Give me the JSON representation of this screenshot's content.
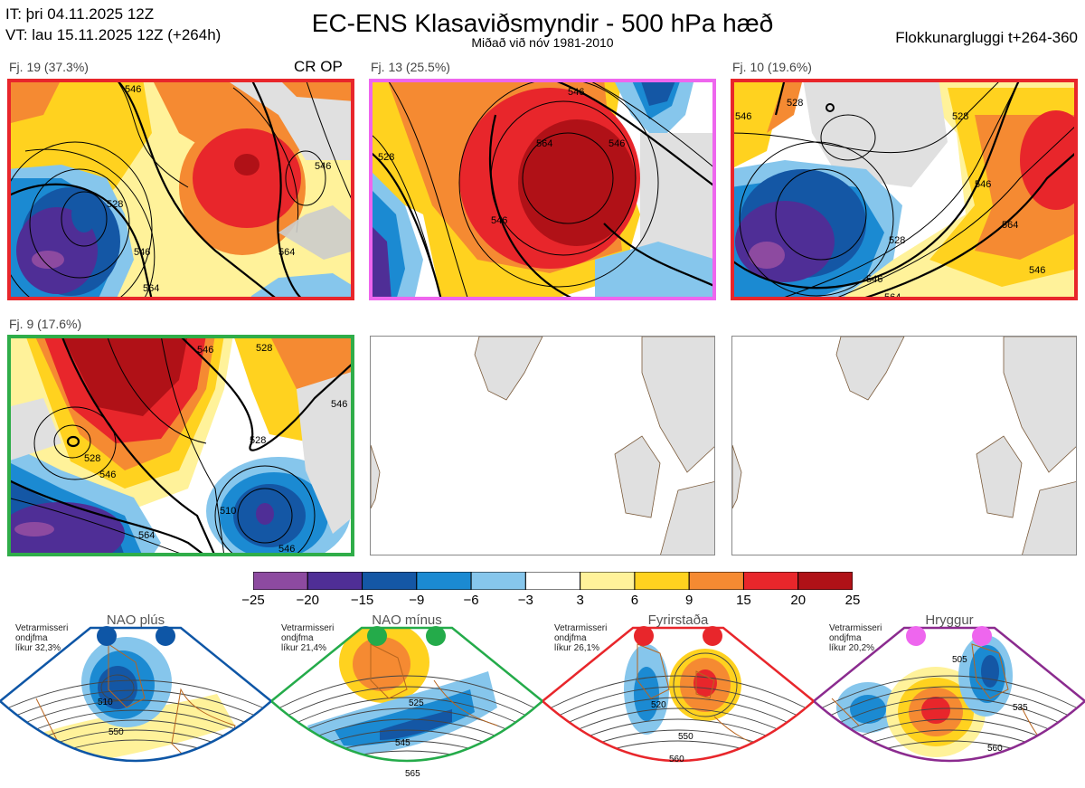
{
  "header": {
    "it_line": "IT: þri 04.11.2025 12Z",
    "vt_line": "VT: lau 15.11.2025 12Z  (+264h)",
    "title": "EC-ENS Klasaviðsmyndir - 500 hPa hæð",
    "subtitle": "Miðað við nóv 1981-2010",
    "window": "Flokkunargluggi t+264-360"
  },
  "panels": [
    {
      "label": "Fj. 19 (37.3%)",
      "border": "#e8262b",
      "tag": "CR OP",
      "contours": [
        "528",
        "546",
        "564",
        "546",
        "546",
        "564"
      ]
    },
    {
      "label": "Fj. 13 (25.5%)",
      "border": "#ee66ee",
      "contours": [
        "528",
        "564",
        "546",
        "546",
        "546"
      ]
    },
    {
      "label": "Fj. 10 (19.6%)",
      "border": "#e8262b",
      "contours": [
        "528",
        "528",
        "546",
        "528",
        "546",
        "564",
        "546",
        "564",
        "546"
      ]
    },
    {
      "label": "Fj. 9 (17.6%)",
      "border": "#2fad49",
      "contours": [
        "546",
        "528",
        "528",
        "546",
        "528",
        "546",
        "510",
        "564",
        "546"
      ]
    }
  ],
  "chart_data": {
    "type": "heatmap",
    "title": "EC-ENS Klasaviðsmyndir - 500 hPa hæð",
    "colorbar": {
      "ticks": [
        "−25",
        "−20",
        "−15",
        "−9",
        "−6",
        "−3",
        "3",
        "6",
        "9",
        "15",
        "20",
        "25"
      ],
      "bounds": [
        -25,
        -20,
        -15,
        -9,
        -6,
        -3,
        3,
        6,
        9,
        15,
        20,
        25
      ],
      "colors": [
        "#8d4aa0",
        "#4f2e96",
        "#1457a5",
        "#1b8ad2",
        "#86c6ec",
        "#ffffff",
        "#fff29a",
        "#ffd21f",
        "#f58a32",
        "#e8262b",
        "#b01117"
      ]
    },
    "clusters": [
      {
        "label": "Fj. 19",
        "percent": 37.3
      },
      {
        "label": "Fj. 13",
        "percent": 25.5
      },
      {
        "label": "Fj. 10",
        "percent": 19.6
      },
      {
        "label": "Fj. 9",
        "percent": 17.6
      }
    ]
  },
  "regimes": [
    {
      "name": "NAO plús",
      "stat1": "Vetrarmisseri",
      "stat2": "ondjfma",
      "stat3": "líkur 32,3%",
      "color": "#0e56a6",
      "contours": [
        "510",
        "550"
      ]
    },
    {
      "name": "NAO mínus",
      "stat1": "Vetrarmisseri",
      "stat2": "ondjfma",
      "stat3": "líkur 21,4%",
      "color": "#24ab4a",
      "contours": [
        "525",
        "545",
        "565"
      ]
    },
    {
      "name": "Fyrirstaða",
      "stat1": "Vetrarmisseri",
      "stat2": "ondjfma",
      "stat3": "líkur 26,1%",
      "color": "#e8262b",
      "contours": [
        "520",
        "550",
        "560"
      ]
    },
    {
      "name": "Hryggur",
      "stat1": "Vetrarmisseri",
      "stat2": "ondjfma",
      "stat3": "líkur 20,2%",
      "color": "#ee66ee",
      "sector_color": "#8b2b8f",
      "contours": [
        "505",
        "535",
        "560"
      ]
    }
  ]
}
